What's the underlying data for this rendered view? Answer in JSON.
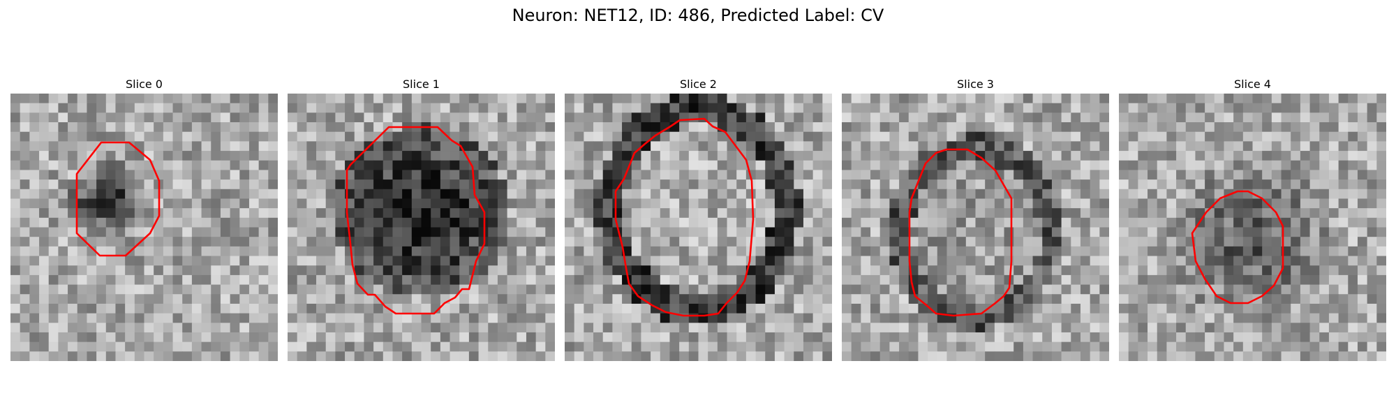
{
  "figure": {
    "title": "Neuron: NET12, ID: 486, Predicted Label: CV",
    "contour_color": "#ff0000",
    "slices": [
      {
        "title": "Slice 0"
      },
      {
        "title": "Slice 1"
      },
      {
        "title": "Slice 2"
      },
      {
        "title": "Slice 3"
      },
      {
        "title": "Slice 4"
      }
    ]
  }
}
